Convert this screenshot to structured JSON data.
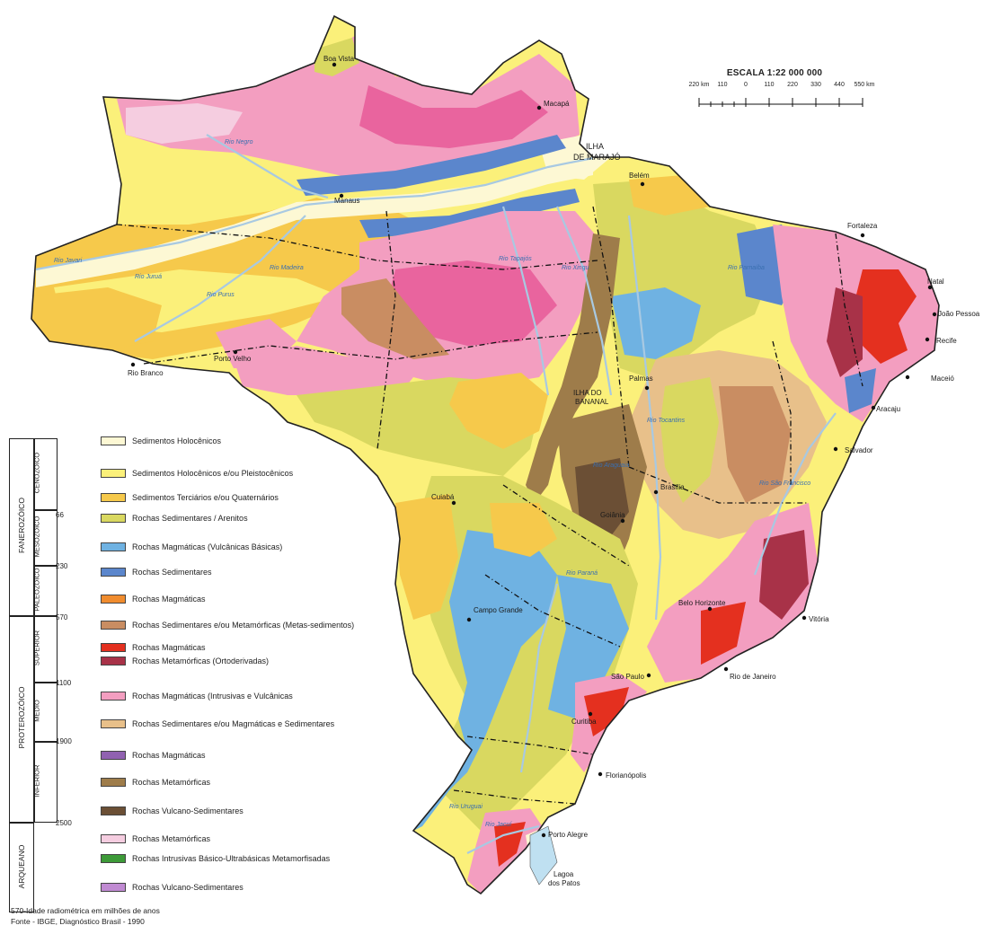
{
  "scale": {
    "title": "ESCALA 1:22 000 000",
    "ticks": [
      "220 km",
      "110",
      "0",
      "110",
      "220",
      "330",
      "440",
      "550 km"
    ]
  },
  "cities": {
    "boa_vista": "Boa Vista",
    "manaus": "Manaus",
    "belem": "Belém",
    "fortaleza": "Fortaleza",
    "natal": "Natal",
    "joao_pessoa": "João Pessoa",
    "recife": "Recife",
    "maceio": "Maceió",
    "aracaju": "Aracaju",
    "salvador": "Salvador",
    "vitoria": "Vitória",
    "rio": "Rio de Janeiro",
    "sao_paulo": "São Paulo",
    "curitiba": "Curitiba",
    "florianopolis": "Florianópolis",
    "porto_alegre": "Porto Alegre",
    "campo_grande": "Campo Grande",
    "cuiaba": "Cuiabá",
    "goiania": "Goiânia",
    "brasilia": "Brasília",
    "belo_horizonte": "Belo Horizonte",
    "rio_branco": "Rio Branco",
    "porto_velho": "Porto Velho",
    "palmas": "Palmas",
    "macapa": "Macapá",
    "ilha_marajo_1": "ILHA",
    "ilha_marajo_2": "DE MARAJÓ",
    "ilha_bananal_1": "ILHA DO",
    "ilha_bananal_2": "BANANAL",
    "lagoa_patos_1": "Lagoa",
    "lagoa_patos_2": "dos Patos"
  },
  "rivers": {
    "javari": "Rio Javari",
    "negro": "Rio Negro",
    "juruá": "Rio Juruá",
    "purus": "Rio Purus",
    "sao_francisco": "Rio São Francisco",
    "parana": "Rio Paraná",
    "jacui": "Rio Jacuí",
    "uruguai": "Rio Uruguai",
    "tapajos": "Rio Tapajós",
    "xingu": "Rio Xingu",
    "tocantins": "Rio Tocantins",
    "araguaia": "Rio Araguaia",
    "madeira": "Rio Madeira",
    "parnaiba": "Rio Parnaíba"
  },
  "timescale": {
    "eons": [
      "FANEROZÓICO",
      "PROTEROZÓICO",
      "ARQUEANO"
    ],
    "eras": [
      "CENOZÓICO",
      "MESOZÓICO",
      "PALEOZÓICO",
      "SUPERIOR",
      "MÉDIO",
      "INFERIOR"
    ],
    "ages": [
      "66",
      "230",
      "570",
      "1100",
      "1900",
      "2500"
    ]
  },
  "legend": [
    {
      "label": "Sedimentos Holocênicos",
      "color": "#fdf8d4"
    },
    {
      "label": "Sedimentos Holocênicos e/ou Pleistocênicos",
      "color": "#fbf07a"
    },
    {
      "label": "Sedimentos Terciários e/ou Quaternários",
      "color": "#f6c94b"
    },
    {
      "label": "Rochas Sedimentares / Arenitos",
      "color": "#d9d860"
    },
    {
      "label": "Rochas Magmáticas (Vulcânicas Básicas)",
      "color": "#6fb2e2"
    },
    {
      "label": "Rochas Sedimentares",
      "color": "#5b86cc"
    },
    {
      "label": "Rochas Magmáticas",
      "color": "#f08c2e"
    },
    {
      "label": "Rochas Sedimentares e/ou Metamórficas (Metas-sedimentos)",
      "color": "#c98d62"
    },
    {
      "label": "Rochas Magmáticas",
      "color": "#e4301f"
    },
    {
      "label": "Rochas Metamórficas (Ortoderivadas)",
      "color": "#a83248"
    },
    {
      "label": "Rochas Magmáticas (Intrusivas e Vulcânicas",
      "color": "#f39ec0"
    },
    {
      "label": "Rochas Sedimentares e/ou Magmáticas e Sedimentares",
      "color": "#e8c08a"
    },
    {
      "label": "Rochas Magmáticas",
      "color": "#9061b0"
    },
    {
      "label": "Rochas Metamórficas",
      "color": "#9e7c4a"
    },
    {
      "label": "Rochas Vulcano-Sedimentares",
      "color": "#6b4f35"
    },
    {
      "label": "Rochas Metamórficas",
      "color": "#f5cde0"
    },
    {
      "label": "Rochas Intrusivas Básico-Ultrabásicas Metamorfisadas",
      "color": "#3d9a38"
    },
    {
      "label": "Rochas Vulcano-Sedimentares",
      "color": "#c08ad2"
    }
  ],
  "footer": {
    "line1": "570-Idade radiométrica em milhões de anos",
    "line2": "Fonte - IBGE, Diagnóstico Brasil - 1990"
  }
}
